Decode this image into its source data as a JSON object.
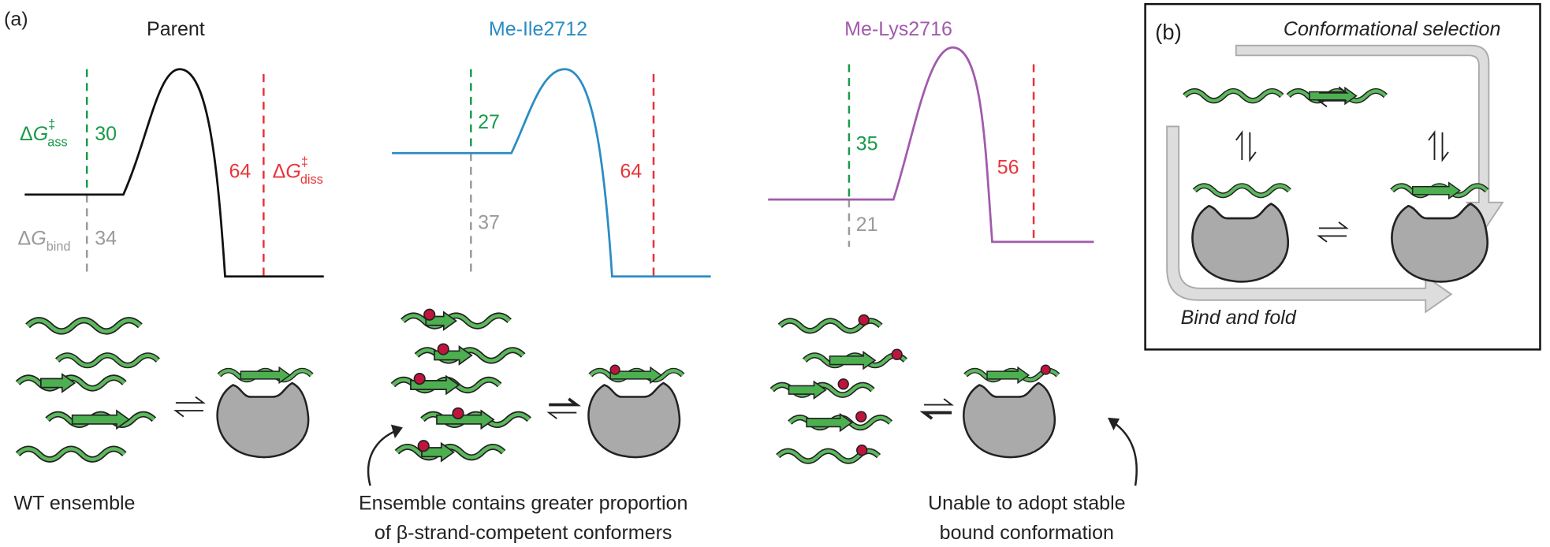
{
  "panel_a": {
    "label": "(a)",
    "profiles": [
      {
        "title": "Parent",
        "ass": 30,
        "diss": 64,
        "bind": 34
      },
      {
        "title": "Me-Ile2712",
        "ass": 27,
        "diss": 64,
        "bind": 37
      },
      {
        "title": "Me-Lys2716",
        "ass": 35,
        "diss": 56,
        "bind": 21
      }
    ],
    "dg_ass": {
      "delta": "Δ",
      "variable": "G",
      "sup": "‡",
      "sub": "ass"
    },
    "dg_diss": {
      "delta": "Δ",
      "variable": "G",
      "sup": "‡",
      "sub": "diss"
    },
    "dg_bind": {
      "delta": "Δ",
      "variable": "G",
      "sub": "bind"
    },
    "captions": [
      [
        "WT ensemble"
      ],
      [
        "Ensemble contains greater proportion",
        "of β-strand-competent conformers"
      ],
      [
        "Unable to adopt stable",
        "bound conformation"
      ]
    ]
  },
  "panel_b": {
    "label": "(b)",
    "top_path": "Conformational selection",
    "bottom_path": "Bind and fold"
  }
}
